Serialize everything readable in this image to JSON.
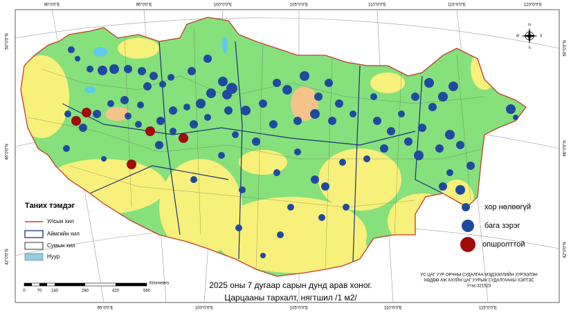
{
  "graticule": {
    "top": [
      "90°0'0\"E",
      "95°0'0\"E",
      "100°0'0\"E",
      "105°0'0\"E",
      "110°0'0\"E",
      "115°0'0\"E",
      "120°0'0\"E"
    ],
    "bottom": [
      "95°0'0\"E",
      "100°0'0\"E",
      "105°0'0\"E",
      "110°0'0\"E",
      "115°0'0\"E"
    ],
    "left": [
      "50°0'0\"N",
      "46°0'0\"N",
      "42°0'0\"N"
    ],
    "right": [
      "50°0'0\"N",
      "46°0'0\"N",
      "42°0'0\"N"
    ]
  },
  "legend": {
    "title": "Таних тэмдэг",
    "items": [
      "Улсын хил",
      "Аймгийн хил",
      "Сумын хил",
      "Нуур"
    ]
  },
  "point_legend": [
    "хор нөлөөгүй",
    "бага зэрэг",
    "опшролттой"
  ],
  "scale_bar": {
    "labels": [
      "0",
      "70",
      "140",
      "280",
      "420",
      "560"
    ],
    "unit": "Kilometers"
  },
  "title": {
    "line1": "2025 оны 7 дугаар сарын дунд арав хоног.",
    "line2": "Царцааны тархалт, нягтшил /1 м2/"
  },
  "credits": [
    "УС ЦАГ УУР ОРЧНЫ СУДАЛГАА МЭДЭЭЛЛИЙН ХҮРЭЭЛЭН",
    "ХӨДӨӨ АЖ АХУЙН ЦАГ УУРЫН СУДАЛГААНЫ ХЭЛТЭС",
    "Утас:321523"
  ],
  "compass": {
    "n": "N",
    "s": "S",
    "e": "E",
    "w": "W"
  }
}
